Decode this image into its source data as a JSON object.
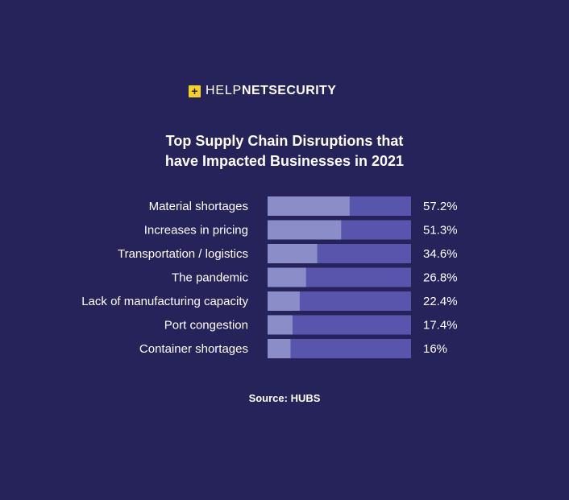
{
  "logo": {
    "mark": "+",
    "help": "HELP",
    "net": "NET",
    "security": "SECURITY"
  },
  "title_line1": "Top Supply Chain Disruptions that",
  "title_line2": "have Impacted Businesses in 2021",
  "source": "Source: HUBS",
  "colors": {
    "background": "#26225a",
    "bar_track": "#5954ac",
    "bar_fill": "#8b8dc9",
    "logo_mark": "#f5d21f"
  },
  "chart_data": {
    "type": "bar",
    "orientation": "horizontal",
    "title": "Top Supply Chain Disruptions that have Impacted Businesses in 2021",
    "categories": [
      "Material shortages",
      "Increases in pricing",
      "Transportation / logistics",
      "The pandemic",
      "Lack of manufacturing capacity",
      "Port congestion",
      "Container shortages"
    ],
    "values": [
      57.2,
      51.3,
      34.6,
      26.8,
      22.4,
      17.4,
      16
    ],
    "value_labels": [
      "57.2%",
      "51.3%",
      "34.6%",
      "26.8%",
      "22.4%",
      "17.4%",
      "16%"
    ],
    "xlim": [
      0,
      100
    ],
    "grid": false,
    "legend": "none"
  }
}
